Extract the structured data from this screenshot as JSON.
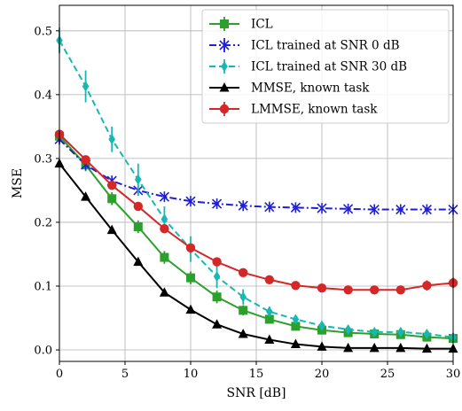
{
  "chart_data": {
    "type": "line",
    "xlabel": "SNR [dB]",
    "ylabel": "MSE",
    "xlim": [
      0,
      30
    ],
    "ylim": [
      -0.018,
      0.54
    ],
    "xticks": [
      0,
      5,
      10,
      15,
      20,
      25,
      30
    ],
    "yticks": [
      0.0,
      0.1,
      0.2,
      0.3,
      0.4,
      0.5
    ],
    "x_tick_labels": [
      "0",
      "5",
      "10",
      "15",
      "20",
      "25",
      "30"
    ],
    "y_tick_labels": [
      "0.0",
      "0.1",
      "0.2",
      "0.3",
      "0.4",
      "0.5"
    ],
    "grid": true,
    "legend_position": "top-right",
    "x": [
      0,
      2,
      4,
      6,
      8,
      10,
      12,
      14,
      16,
      18,
      20,
      22,
      24,
      26,
      28,
      30
    ],
    "series": [
      {
        "name": "ICL",
        "color": "#2ca02c",
        "marker": "square",
        "line": "solid",
        "values": [
          0.335,
          0.29,
          0.237,
          0.193,
          0.145,
          0.113,
          0.083,
          0.062,
          0.048,
          0.037,
          0.031,
          0.027,
          0.025,
          0.024,
          0.02,
          0.018
        ],
        "errors": [
          0.01,
          0.01,
          0.01,
          0.01,
          0.01,
          0.01,
          0.01,
          0.008,
          0.007,
          0.006,
          0.005,
          0.005,
          0.005,
          0.005,
          0.005,
          0.005
        ]
      },
      {
        "name": "ICL trained at SNR 0 dB",
        "color": "#1f1fd6",
        "marker": "x-star",
        "line": "dashdot",
        "values": [
          0.33,
          0.29,
          0.265,
          0.25,
          0.24,
          0.233,
          0.229,
          0.226,
          0.224,
          0.223,
          0.222,
          0.221,
          0.22,
          0.22,
          0.22,
          0.22
        ],
        "errors": [
          0.005,
          0.005,
          0.004,
          0.004,
          0.003,
          0.003,
          0.003,
          0.003,
          0.003,
          0.003,
          0.003,
          0.003,
          0.003,
          0.003,
          0.003,
          0.003
        ]
      },
      {
        "name": "ICL trained at SNR 30 dB",
        "color": "#17b8b3",
        "marker": "diamond",
        "line": "dashed",
        "values": [
          0.485,
          0.413,
          0.33,
          0.267,
          0.205,
          0.158,
          0.115,
          0.083,
          0.06,
          0.048,
          0.038,
          0.032,
          0.028,
          0.028,
          0.025,
          0.02
        ],
        "errors": [
          0.02,
          0.025,
          0.02,
          0.025,
          0.02,
          0.02,
          0.018,
          0.012,
          0.008,
          0.006,
          0.005,
          0.005,
          0.005,
          0.004,
          0.004,
          0.004
        ]
      },
      {
        "name": "MMSE, known task",
        "color": "#000000",
        "marker": "triangle",
        "line": "solid",
        "values": [
          0.292,
          0.24,
          0.188,
          0.138,
          0.09,
          0.063,
          0.04,
          0.025,
          0.016,
          0.009,
          0.005,
          0.003,
          0.003,
          0.003,
          0.002,
          0.002
        ],
        "errors": [
          0,
          0,
          0,
          0,
          0,
          0,
          0,
          0,
          0,
          0,
          0,
          0,
          0,
          0,
          0,
          0
        ]
      },
      {
        "name": "LMMSE, known task",
        "color": "#d62728",
        "marker": "circle",
        "line": "solid",
        "values": [
          0.338,
          0.298,
          0.258,
          0.225,
          0.19,
          0.16,
          0.138,
          0.121,
          0.11,
          0.101,
          0.097,
          0.094,
          0.094,
          0.094,
          0.101,
          0.105
        ],
        "errors": [
          0.005,
          0.005,
          0.004,
          0.004,
          0.004,
          0.004,
          0.004,
          0.004,
          0.004,
          0.004,
          0.004,
          0.004,
          0.006,
          0.006,
          0.008,
          0.008
        ]
      }
    ]
  }
}
